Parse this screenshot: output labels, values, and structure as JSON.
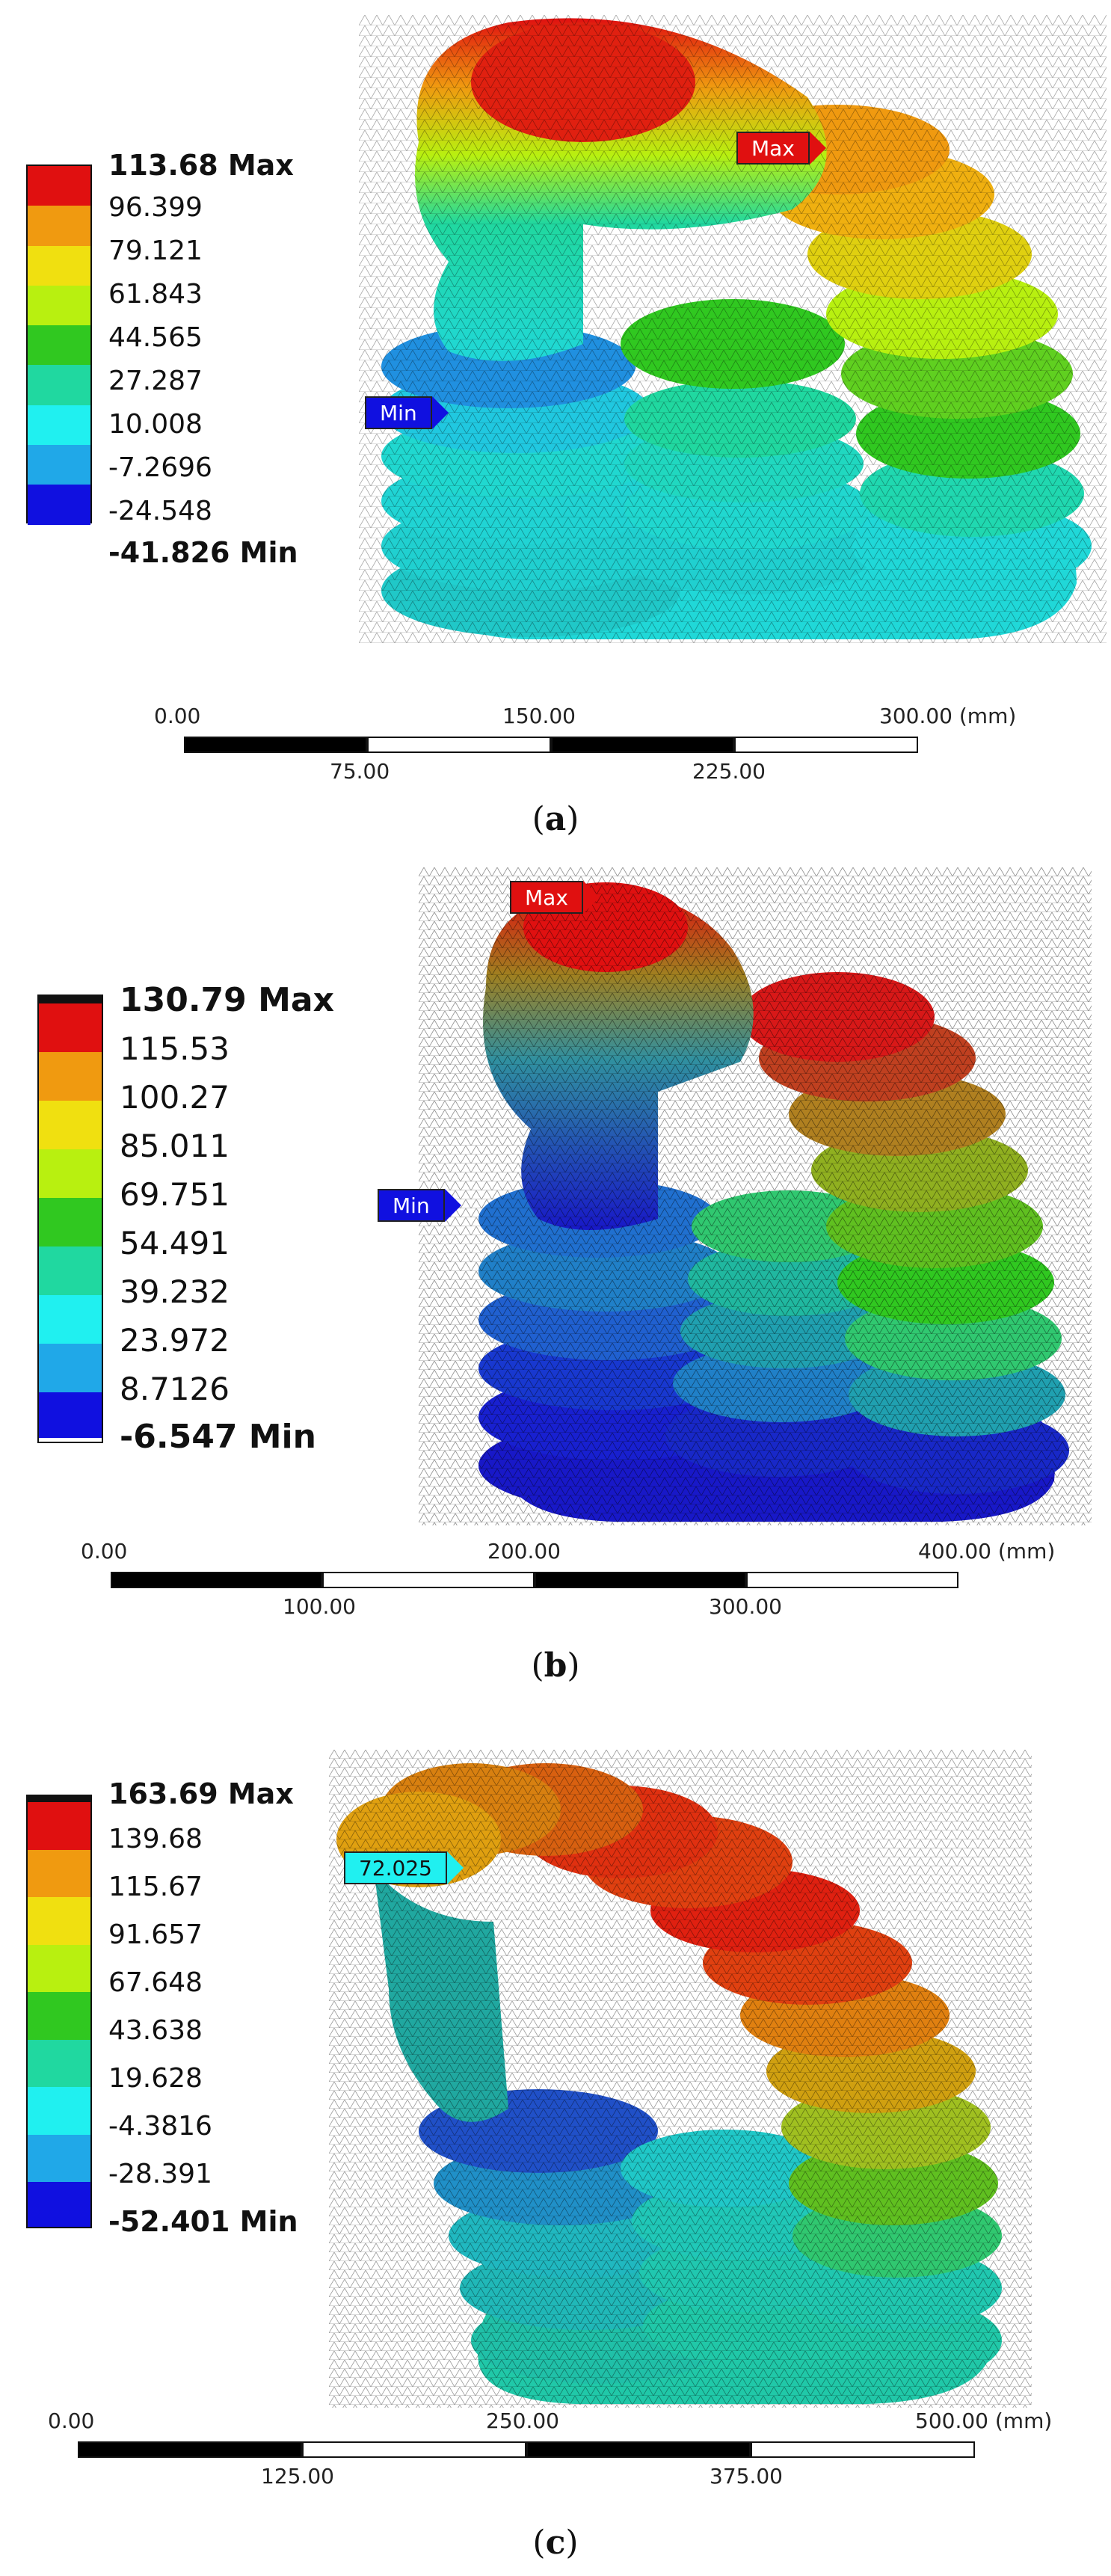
{
  "colors": {
    "scale": [
      "#e01010",
      "#f09a10",
      "#f0e010",
      "#b8f010",
      "#30c820",
      "#20d8a0",
      "#20f0f0",
      "#20a8e8",
      "#1010e0"
    ],
    "max_tag": "#e01010",
    "min_tag": "#1010e0",
    "probe_tag": "#20f0f0"
  },
  "panels": [
    {
      "caption_letter": "a",
      "legend": [
        "113.68 Max",
        "96.399",
        "79.121",
        "61.843",
        "44.565",
        "27.287",
        "10.008",
        "-7.2696",
        "-24.548",
        "-41.826 Min"
      ],
      "tags": {
        "max": "Max",
        "min": "Min"
      },
      "scale_top": [
        "0.00",
        "150.00",
        "300.00 (mm)"
      ],
      "scale_bottom": [
        "75.00",
        "225.00"
      ]
    },
    {
      "caption_letter": "b",
      "legend": [
        "130.79 Max",
        "115.53",
        "100.27",
        "85.011",
        "69.751",
        "54.491",
        "39.232",
        "23.972",
        "8.7126",
        "-6.547 Min"
      ],
      "tags": {
        "max": "Max",
        "min": "Min"
      },
      "scale_top": [
        "0.00",
        "200.00",
        "400.00 (mm)"
      ],
      "scale_bottom": [
        "100.00",
        "300.00"
      ]
    },
    {
      "caption_letter": "c",
      "legend": [
        "163.69 Max",
        "139.68",
        "115.67",
        "91.657",
        "67.648",
        "43.638",
        "19.628",
        "-4.3816",
        "-28.391",
        "-52.401 Min"
      ],
      "tags": {
        "probe": "72.025"
      },
      "scale_top": [
        "0.00",
        "250.00",
        "500.00 (mm)"
      ],
      "scale_bottom": [
        "125.00",
        "375.00"
      ]
    }
  ]
}
